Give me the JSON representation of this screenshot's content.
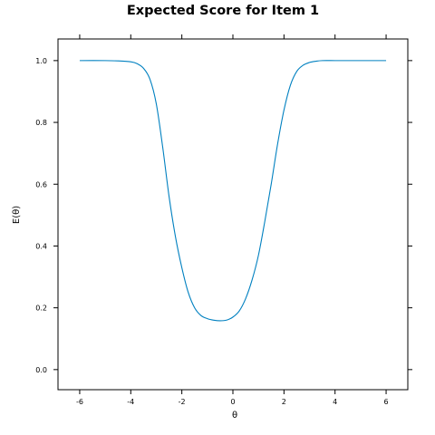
{
  "chart_data": {
    "type": "line",
    "title": "Expected Score for Item 1",
    "xlabel": "θ",
    "ylabel": "E(θ)",
    "xlim": [
      -6.85,
      6.85
    ],
    "ylim": [
      -0.065,
      1.07
    ],
    "xticks": [
      -6,
      -4,
      -2,
      0,
      2,
      4,
      6
    ],
    "xtick_labels": [
      "-6",
      "-4",
      "-2",
      "0",
      "2",
      "4",
      "6"
    ],
    "yticks": [
      0.0,
      0.2,
      0.4,
      0.6,
      0.8,
      1.0
    ],
    "ytick_labels": [
      "0.0",
      "0.2",
      "0.4",
      "0.6",
      "0.8",
      "1.0"
    ],
    "grid": false,
    "line_color": "#0080c0",
    "series": [
      {
        "x": [
          -6,
          -5,
          -4.5,
          -4,
          -3.75,
          -3.5,
          -3.25,
          -3,
          -2.75,
          -2.5,
          -2.25,
          -2,
          -1.75,
          -1.5,
          -1.25,
          -1,
          -0.75,
          -0.5,
          -0.25,
          0,
          0.25,
          0.5,
          0.75,
          1,
          1.25,
          1.5,
          1.75,
          2,
          2.25,
          2.5,
          2.75,
          3,
          3.25,
          3.5,
          4,
          4.5,
          5,
          6
        ],
        "y": [
          1.0,
          1.0,
          0.999,
          0.996,
          0.99,
          0.975,
          0.94,
          0.86,
          0.72,
          0.56,
          0.43,
          0.33,
          0.25,
          0.2,
          0.175,
          0.165,
          0.16,
          0.158,
          0.16,
          0.17,
          0.19,
          0.23,
          0.29,
          0.37,
          0.48,
          0.6,
          0.73,
          0.84,
          0.92,
          0.965,
          0.985,
          0.994,
          0.998,
          1.0,
          1.0,
          1.0,
          1.0,
          1.0
        ]
      }
    ]
  }
}
